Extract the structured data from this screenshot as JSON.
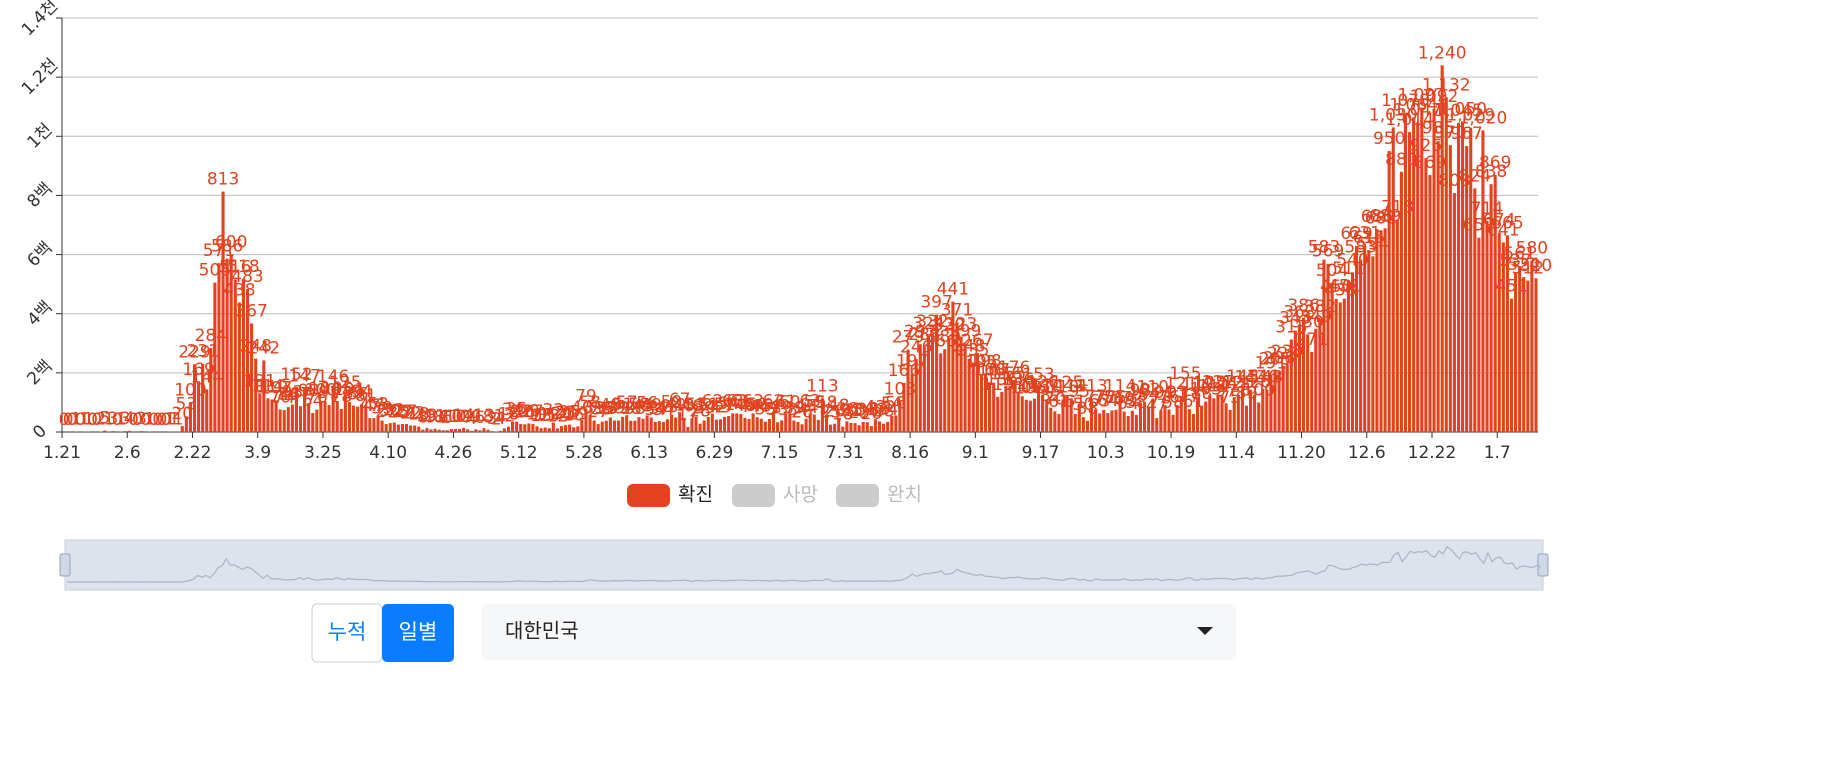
{
  "chart_data": {
    "type": "bar",
    "ylim": [
      0,
      1400
    ],
    "yticks": [
      0,
      {
        "value": 200,
        "label": "2백"
      },
      {
        "value": 400,
        "label": "4백"
      },
      {
        "value": 600,
        "label": "6백"
      },
      {
        "value": 800,
        "label": "8백"
      },
      {
        "value": 1000,
        "label": "1천"
      },
      {
        "value": 1200,
        "label": "1.2천"
      },
      {
        "value": 1400,
        "label": "1.4천"
      }
    ],
    "grid": true,
    "categories": [
      "1.21",
      null,
      null,
      null,
      null,
      null,
      null,
      null,
      null,
      null,
      null,
      null,
      null,
      null,
      null,
      null,
      "2.6",
      null,
      null,
      null,
      null,
      null,
      null,
      null,
      null,
      null,
      null,
      null,
      null,
      null,
      null,
      null,
      "2.22",
      null,
      null,
      null,
      null,
      null,
      null,
      null,
      null,
      null,
      null,
      null,
      null,
      null,
      null,
      null,
      "3.9",
      null,
      null,
      null,
      null,
      null,
      null,
      null,
      null,
      null,
      null,
      null,
      null,
      null,
      null,
      null,
      "3.25",
      null,
      null,
      null,
      null,
      null,
      null,
      null,
      null,
      null,
      null,
      null,
      null,
      null,
      null,
      null,
      "4.10",
      null,
      null,
      null,
      null,
      null,
      null,
      null,
      null,
      null,
      null,
      null,
      null,
      null,
      null,
      null,
      "4.26",
      null,
      null,
      null,
      null,
      null,
      null,
      null,
      null,
      null,
      null,
      null,
      null,
      null,
      null,
      null,
      "5.12",
      null,
      null,
      null,
      null,
      null,
      null,
      null,
      null,
      null,
      null,
      null,
      null,
      null,
      null,
      null,
      "5.28",
      null,
      null,
      null,
      null,
      null,
      null,
      null,
      null,
      null,
      null,
      null,
      null,
      null,
      null,
      null,
      "6.13",
      null,
      null,
      null,
      null,
      null,
      null,
      null,
      null,
      null,
      null,
      null,
      null,
      null,
      null,
      null,
      "6.29",
      null,
      null,
      null,
      null,
      null,
      null,
      null,
      null,
      null,
      null,
      null,
      null,
      null,
      null,
      null,
      "7.15",
      null,
      null,
      null,
      null,
      null,
      null,
      null,
      null,
      null,
      null,
      null,
      null,
      null,
      null,
      null,
      "7.31",
      null,
      null,
      null,
      null,
      null,
      null,
      null,
      null,
      null,
      null,
      null,
      null,
      null,
      null,
      null,
      "8.16",
      null,
      null,
      null,
      null,
      null,
      null,
      null,
      null,
      null,
      null,
      null,
      null,
      null,
      null,
      null,
      "9.1",
      null,
      null,
      null,
      null,
      null,
      null,
      null,
      null,
      null,
      null,
      null,
      null,
      null,
      null,
      null,
      "9.17",
      null,
      null,
      null,
      null,
      null,
      null,
      null,
      null,
      null,
      null,
      null,
      null,
      null,
      null,
      null,
      "10.3",
      null,
      null,
      null,
      null,
      null,
      null,
      null,
      null,
      null,
      null,
      null,
      null,
      null,
      null,
      null,
      "10.19",
      null,
      null,
      null,
      null,
      null,
      null,
      null,
      null,
      null,
      null,
      null,
      null,
      null,
      null,
      null,
      "11.4",
      null,
      null,
      null,
      null,
      null,
      null,
      null,
      null,
      null,
      null,
      null,
      null,
      null,
      null,
      null,
      "11.20",
      null,
      null,
      null,
      null,
      null,
      null,
      null,
      null,
      null,
      null,
      null,
      null,
      null,
      null,
      null,
      "12.6",
      null,
      null,
      null,
      null,
      null,
      null,
      null,
      null,
      null,
      null,
      null,
      null,
      null,
      null,
      null,
      "12.22",
      null,
      null,
      null,
      null,
      null,
      null,
      null,
      null,
      null,
      null,
      null,
      null,
      null,
      null,
      null,
      "1.7",
      null,
      null,
      null,
      null,
      null,
      null,
      null,
      null,
      null
    ],
    "series": [
      {
        "name": "확진",
        "color": "#e2431e",
        "values": [
          0,
          0,
          0,
          1,
          0,
          1,
          1,
          0,
          0,
          2,
          5,
          1,
          3,
          0,
          1,
          3,
          4,
          0,
          0,
          3,
          0,
          1,
          0,
          0,
          0,
          0,
          1,
          1,
          1,
          20,
          53,
          100,
          229,
          169,
          231,
          144,
          284,
          505,
          571,
          813,
          586,
          600,
          516,
          438,
          518,
          483,
          367,
          248,
          131,
          242,
          114,
          110,
          107,
          76,
          74,
          84,
          93,
          152,
          87,
          147,
          98,
          64,
          76,
          100,
          104,
          91,
          146,
          105,
          78,
          125,
          101,
          89,
          86,
          94,
          81,
          47,
          47,
          53,
          39,
          27,
          30,
          32,
          25,
          27,
          27,
          22,
          22,
          18,
          8,
          13,
          9,
          11,
          8,
          6,
          6,
          10,
          10,
          10,
          14,
          9,
          4,
          9,
          6,
          13,
          8,
          3,
          2,
          4,
          12,
          18,
          34,
          35,
          27,
          26,
          29,
          27,
          19,
          13,
          15,
          13,
          32,
          12,
          20,
          23,
          25,
          16,
          19,
          40,
          79,
          58,
          39,
          27,
          35,
          38,
          49,
          39,
          39,
          51,
          57,
          38,
          38,
          50,
          45,
          56,
          49,
          34,
          37,
          34,
          43,
          59,
          49,
          67,
          48,
          17,
          46,
          51,
          28,
          39,
          51,
          62,
          42,
          43,
          51,
          54,
          63,
          63,
          61,
          48,
          44,
          63,
          50,
          45,
          35,
          44,
          62,
          33,
          39,
          61,
          60,
          39,
          34,
          26,
          45,
          63,
          59,
          41,
          113,
          58,
          25,
          28,
          48,
          18,
          36,
          31,
          30,
          23,
          34,
          33,
          20,
          43,
          36,
          28,
          34,
          54,
          56,
          103,
          166,
          279,
          197,
          246,
          297,
          288,
          324,
          332,
          397,
          266,
          280,
          320,
          441,
          371,
          323,
          299,
          248,
          235,
          267,
          195,
          198,
          168,
          167,
          119,
          136,
          156,
          155,
          176,
          136,
          121,
          109,
          106,
          113,
          153,
          126,
          110,
          82,
          70,
          61,
          110,
          125,
          114,
          61,
          95,
          50,
          38,
          113,
          77,
          63,
          75,
          64,
          73,
          75,
          114,
          69,
          54,
          72,
          58,
          98,
          102,
          84,
          110,
          47,
          73,
          91,
          76,
          58,
          91,
          121,
          155,
          77,
          61,
          119,
          88,
          103,
          125,
          114,
          127,
          124,
          97,
          75,
          118,
          125,
          145,
          89,
          143,
          126,
          100,
          146,
          143,
          191,
          205,
          208,
          223,
          230,
          313,
          343,
          363,
          386,
          330,
          271,
          349,
          382,
          583,
          569,
          504,
          450,
          438,
          451,
          511,
          540,
          629,
          583,
          631,
          615,
          594,
          686,
          682,
          689,
          950,
          1030,
          718,
          880,
          1078,
          1014,
          1064,
          1047,
          1097,
          926,
          869,
          1092,
          985,
          1240,
          1132,
          970,
          808,
          1045,
          1050,
          967,
          1029,
          824,
          657,
          1020,
          714,
          838,
          869,
          674,
          641,
          665,
          451,
          537,
          561,
          524,
          512,
          580,
          520
        ],
        "value_labels": {
          "326": "1,030",
          "329": "1,078",
          "330": "1,014",
          "331": "1,064",
          "332": "1,047",
          "333": "1,097",
          "336": "1,092",
          "338": "1,240",
          "339": "1,132",
          "342": "1,045",
          "343": "1,050",
          "345": "1,029",
          "348": "1,020"
        }
      }
    ],
    "hidden_series": [
      {
        "name": "사망",
        "color": "#cccccc"
      },
      {
        "name": "완치",
        "color": "#cccccc"
      }
    ]
  },
  "controls": {
    "mode_buttons": [
      "누적",
      "일별"
    ],
    "selected_mode": 1,
    "region": "대한민국"
  }
}
